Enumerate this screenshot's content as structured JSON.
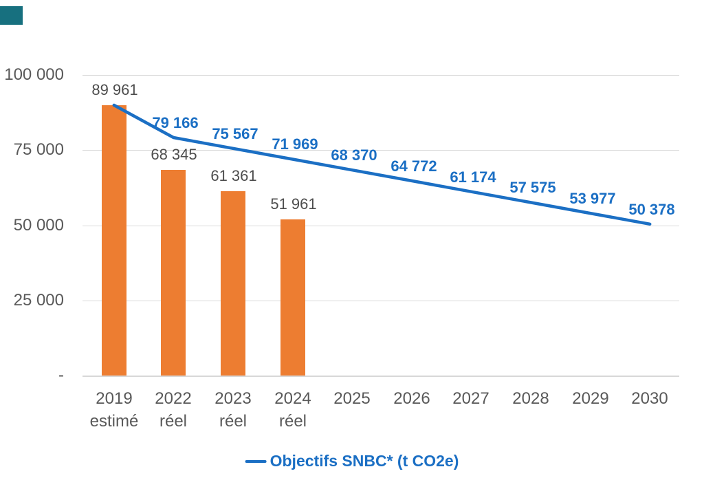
{
  "page": {
    "background": "#ffffff"
  },
  "decoration": {
    "corner_accent_color": "#17707f"
  },
  "chart_data": {
    "type": "combo",
    "title": "",
    "grid": true,
    "legend_position": "bottom",
    "categories": [
      "2019 estimé",
      "2022 réel",
      "2023 réel",
      "2024 réel",
      "2025",
      "2026",
      "2027",
      "2028",
      "2029",
      "2030"
    ],
    "category_lines": [
      [
        "2019",
        "estimé"
      ],
      [
        "2022",
        "réel"
      ],
      [
        "2023",
        "réel"
      ],
      [
        "2024",
        "réel"
      ],
      [
        "2025"
      ],
      [
        "2026"
      ],
      [
        "2027"
      ],
      [
        "2028"
      ],
      [
        "2029"
      ],
      [
        "2030"
      ]
    ],
    "y_axis": {
      "min": 0,
      "max": 100000,
      "tick_values": [
        100000,
        75000,
        50000,
        25000,
        0
      ],
      "tick_labels": [
        "100 000",
        "75 000",
        "50 000",
        "25 000",
        "-"
      ]
    },
    "series": [
      {
        "id": "emissions-bars",
        "type": "bar",
        "color": "#ed7d31",
        "values": [
          89961,
          68345,
          61361,
          51961,
          null,
          null,
          null,
          null,
          null,
          null
        ],
        "data_labels": [
          "89 961",
          "68 345",
          "61 361",
          "51 961",
          "",
          "",
          "",
          "",
          "",
          ""
        ],
        "label_color": "#4d4d4d"
      },
      {
        "id": "objectifs-snbc",
        "type": "line",
        "name": "Objectifs SNBC* (t CO2e)",
        "color": "#1b6fc4",
        "values": [
          89961,
          79166,
          75567,
          71969,
          68370,
          64772,
          61174,
          57575,
          53977,
          50378
        ],
        "data_labels": [
          "",
          "79 166",
          "75 567",
          "71 969",
          "68 370",
          "64 772",
          "61 174",
          "57 575",
          "53 977",
          "50 378"
        ],
        "label_color": "#1b6fc4"
      }
    ]
  }
}
